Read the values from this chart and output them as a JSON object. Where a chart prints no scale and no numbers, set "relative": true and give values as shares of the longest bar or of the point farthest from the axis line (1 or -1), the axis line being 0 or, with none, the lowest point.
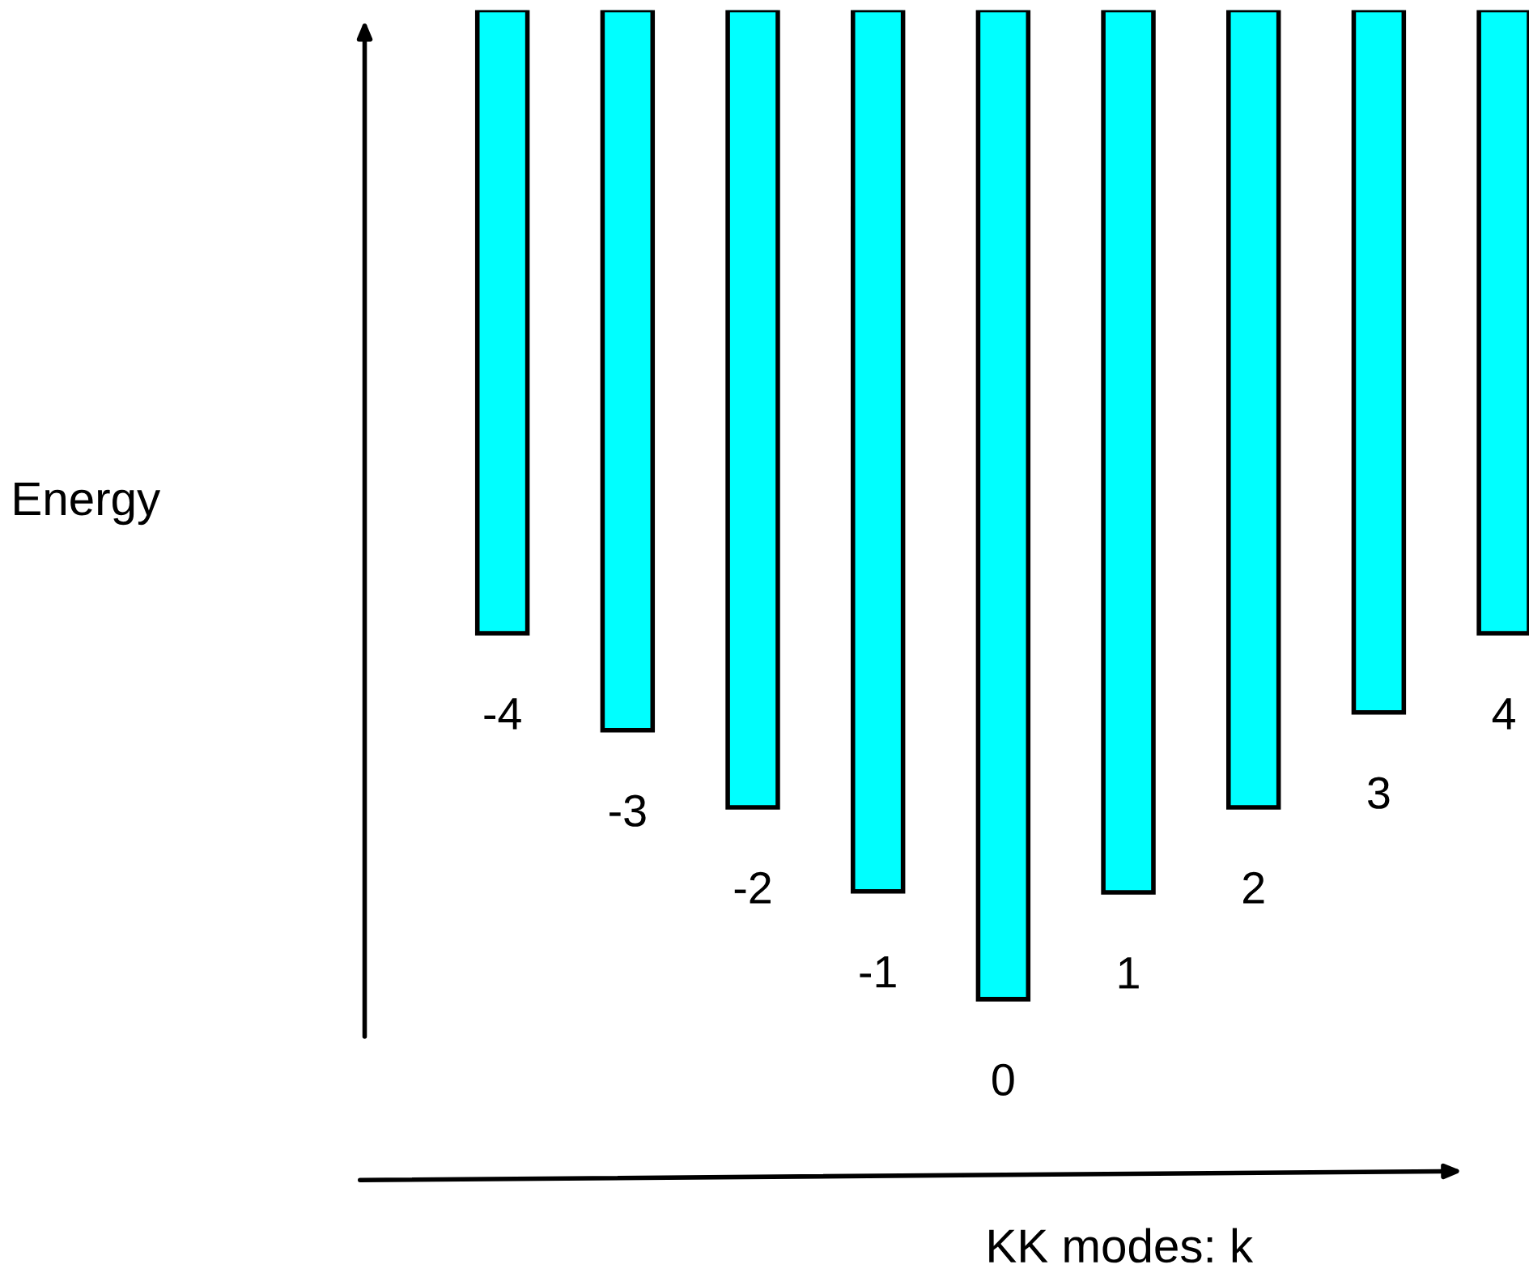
{
  "chart_data": {
    "type": "bar",
    "relative": true,
    "annotations": [
      "Energy",
      "KK modes: k"
    ],
    "categories": [
      "-4",
      "-3",
      "-2",
      "-1",
      "0",
      "1",
      "2",
      "3",
      "4"
    ],
    "values": [
      -0.63,
      -0.728,
      -0.806,
      -0.891,
      -1,
      -0.892,
      -0.806,
      -0.71,
      -0.63
    ],
    "color": "#00ffff"
  }
}
